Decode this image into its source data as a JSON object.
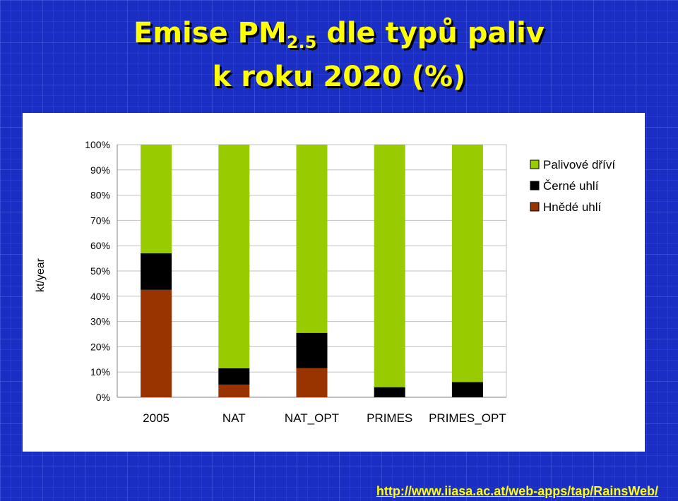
{
  "title": {
    "main": "Emise PM",
    "subscript": "2.5",
    "rest": " dle typů paliv",
    "line2": "k roku 2020 (%)"
  },
  "footer_link": "http://www.iiasa.ac.at/web-apps/tap/RainsWeb/",
  "colors": {
    "background": "#1a2ec4",
    "title": "#ffff00",
    "palivove_drivi": "#99cc00",
    "cerne_uhli": "#000000",
    "hnede_uhli": "#993300"
  },
  "chart_data": {
    "type": "bar",
    "stacked": true,
    "categories": [
      "2005",
      "NAT",
      "NAT_OPT",
      "PRIMES",
      "PRIMES_OPT"
    ],
    "series": [
      {
        "name": "Hnědé uhlí",
        "values": [
          42.5,
          5,
          11.5,
          0,
          0
        ]
      },
      {
        "name": "Černé uhlí",
        "values": [
          14.5,
          6.5,
          14,
          4,
          6
        ]
      },
      {
        "name": "Palivové dříví",
        "values": [
          43,
          88.5,
          74.5,
          96,
          94
        ]
      }
    ],
    "legend": {
      "position": "right",
      "entries": [
        "Palivové dříví",
        "Černé uhlí",
        "Hnědé uhlí"
      ]
    },
    "ylabel": "kt/year",
    "ylim": [
      0,
      100
    ],
    "yticks": [
      "0%",
      "10%",
      "20%",
      "30%",
      "40%",
      "50%",
      "60%",
      "70%",
      "80%",
      "90%",
      "100%"
    ],
    "grid": true
  }
}
